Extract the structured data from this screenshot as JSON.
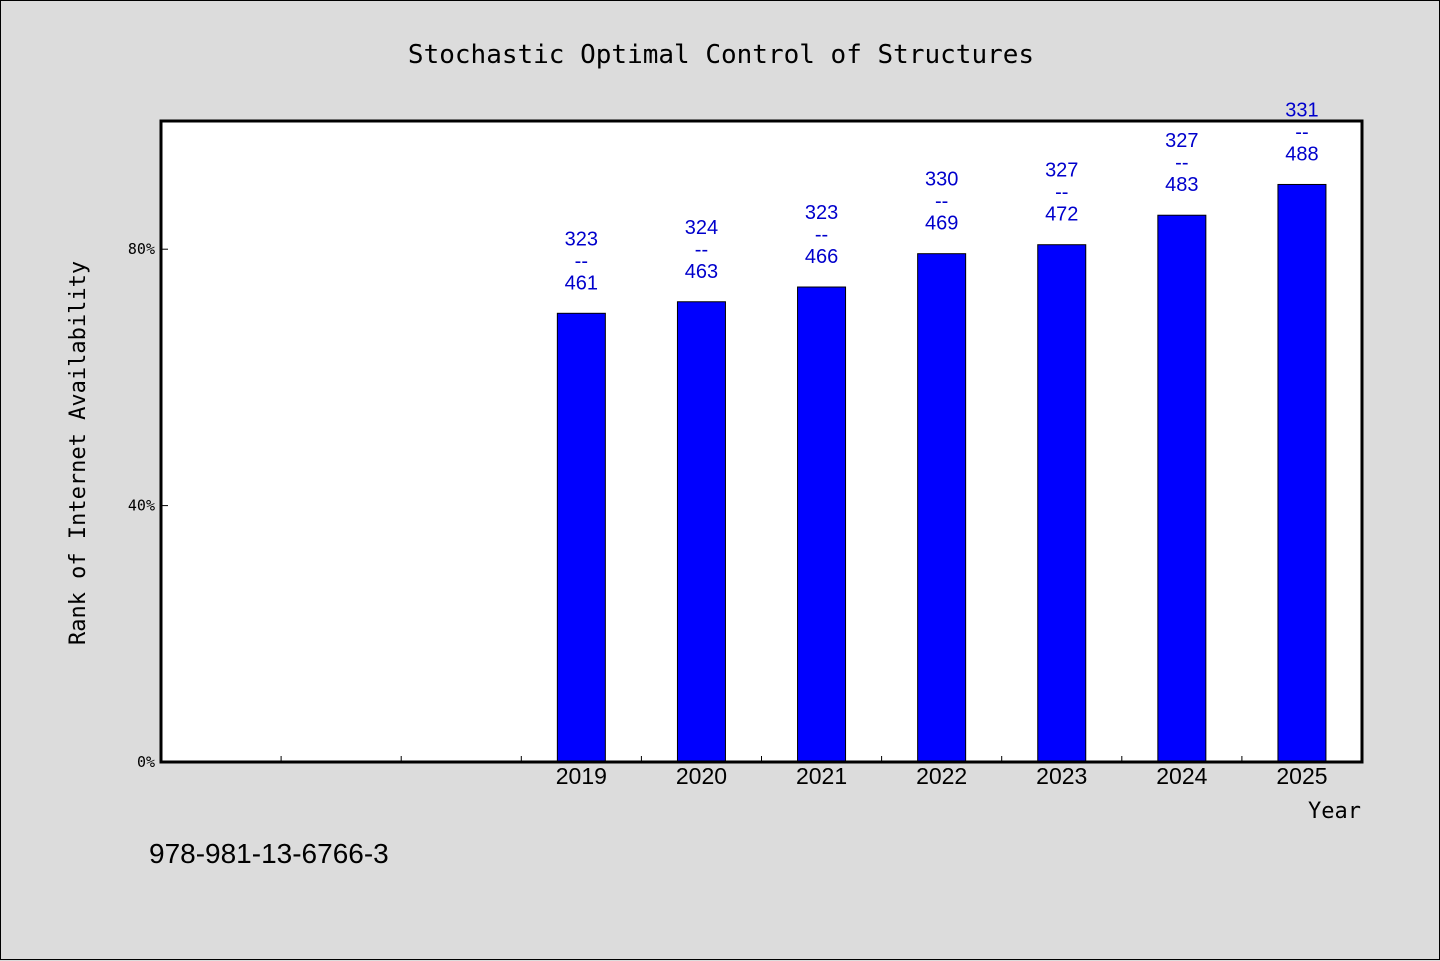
{
  "colors": {
    "bar": "#0000ff",
    "bar_label": "#0000cc",
    "background": "#dcdcdc",
    "plot_area": "#ffffff"
  },
  "footer": {
    "isbn": "978-981-13-6766-3"
  },
  "chart_data": {
    "type": "bar",
    "title": "Stochastic Optimal Control of Structures",
    "xlabel": "Year",
    "ylabel": "Rank of Internet Availability",
    "categories": [
      "",
      "",
      "",
      "2019",
      "2020",
      "2021",
      "2022",
      "2023",
      "2024",
      "2025"
    ],
    "values": [
      null,
      null,
      null,
      70,
      71.8,
      74.1,
      79.3,
      80.7,
      85.3,
      90.1
    ],
    "bar_labels": [
      null,
      null,
      null,
      {
        "top": "323",
        "sep": "--",
        "bottom": "461"
      },
      {
        "top": "324",
        "sep": "--",
        "bottom": "463"
      },
      {
        "top": "323",
        "sep": "--",
        "bottom": "466"
      },
      {
        "top": "330",
        "sep": "--",
        "bottom": "469"
      },
      {
        "top": "327",
        "sep": "--",
        "bottom": "472"
      },
      {
        "top": "327",
        "sep": "--",
        "bottom": "483"
      },
      {
        "top": "331",
        "sep": "--",
        "bottom": "488"
      }
    ],
    "yticks": [
      0,
      40,
      80
    ],
    "ytick_labels": [
      "0%",
      "40%",
      "80%"
    ],
    "ylim": [
      0,
      100
    ],
    "grid": false,
    "legend": "none"
  }
}
